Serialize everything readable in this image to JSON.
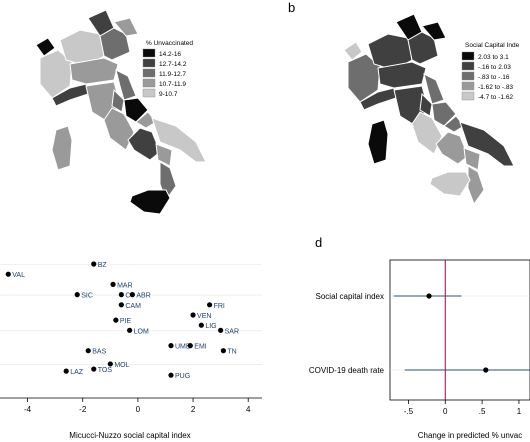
{
  "panel_labels": {
    "b": "b",
    "d": "d"
  },
  "map_a_legend": {
    "title": "% Unvaccinated",
    "items": [
      {
        "label": "14.2-16",
        "color": "#0a0a0a"
      },
      {
        "label": "12.7-14.2",
        "color": "#404040"
      },
      {
        "label": "11.9-12.7",
        "color": "#6e6e6e"
      },
      {
        "label": "10.7-11.9",
        "color": "#9a9a9a"
      },
      {
        "label": "9-10.7",
        "color": "#c8c8c8"
      }
    ]
  },
  "map_b_legend": {
    "title": "Social Capital Inde",
    "items": [
      {
        "label": "2.03 to 3.1",
        "color": "#0a0a0a"
      },
      {
        "label": "-.16 to 2.03",
        "color": "#404040"
      },
      {
        "label": "-.83 to -.16",
        "color": "#6e6e6e"
      },
      {
        "label": "-1.62 to -.83",
        "color": "#9a9a9a"
      },
      {
        "label": "-4.7 to -1.62",
        "color": "#c8c8c8"
      }
    ]
  },
  "chart_data": [
    {
      "type": "scatter",
      "xlabel": "Micucci-Nuzzo social capital index",
      "xlim": [
        -5,
        4.5
      ],
      "xticks": [
        -4,
        -2,
        0,
        2,
        4
      ],
      "points": [
        {
          "label": "BZ",
          "x": -1.6,
          "row": 1
        },
        {
          "label": "VAL",
          "x": -4.7,
          "row": 2
        },
        {
          "label": "MAR",
          "x": -0.9,
          "row": 3
        },
        {
          "label": "SIC",
          "x": -2.2,
          "row": 4
        },
        {
          "label": "C",
          "x": -0.6,
          "row": 4
        },
        {
          "label": "ABR",
          "x": -0.2,
          "row": 4
        },
        {
          "label": "CAM",
          "x": -0.6,
          "row": 5
        },
        {
          "label": "FRI",
          "x": 2.6,
          "row": 5
        },
        {
          "label": "VEN",
          "x": 2.0,
          "row": 6
        },
        {
          "label": "PIE",
          "x": -0.8,
          "row": 6.5
        },
        {
          "label": "LIG",
          "x": 2.3,
          "row": 7
        },
        {
          "label": "LOM",
          "x": -0.3,
          "row": 7.5
        },
        {
          "label": "SAR",
          "x": 3.0,
          "row": 7.5
        },
        {
          "label": "UMB",
          "x": 1.2,
          "row": 9
        },
        {
          "label": "EMI",
          "x": 1.9,
          "row": 9
        },
        {
          "label": "BAS",
          "x": -1.8,
          "row": 9.5
        },
        {
          "label": "TN",
          "x": 3.1,
          "row": 9.5
        },
        {
          "label": "MOL",
          "x": -1.0,
          "row": 10.8
        },
        {
          "label": "TOS",
          "x": -1.6,
          "row": 11.3
        },
        {
          "label": "LAZ",
          "x": -2.6,
          "row": 11.5
        },
        {
          "label": "PUG",
          "x": 1.2,
          "row": 11.9
        }
      ]
    },
    {
      "type": "coefplot",
      "xlabel": "Change in predicted % unvac",
      "xlim": [
        -0.75,
        1.15
      ],
      "xticks": [
        -0.5,
        0,
        0.5,
        1
      ],
      "xtick_labels": [
        "-.5",
        "0",
        ".5",
        "1"
      ],
      "reference_line": 0,
      "coefficients": [
        {
          "label": "Social capital index",
          "estimate": -0.22,
          "ci": [
            -0.7,
            0.22
          ]
        },
        {
          "label": "COVID-19 death rate",
          "estimate": 0.55,
          "ci": [
            -0.55,
            1.15
          ]
        }
      ]
    }
  ]
}
